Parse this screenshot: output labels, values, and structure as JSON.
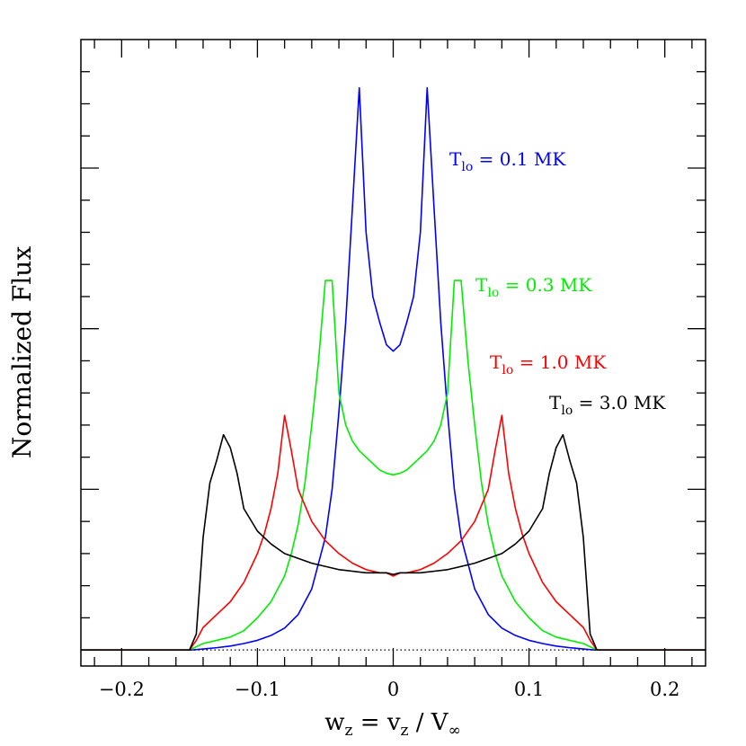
{
  "chart_data": {
    "type": "line",
    "xlabel": {
      "main": "w",
      "sub": "z",
      "mid": " = v",
      "sub2": "z",
      "tail": " / V",
      "sub3": "∞"
    },
    "ylabel": "Normalized Flux",
    "xlim": [
      -0.23,
      0.23
    ],
    "ylim": [
      -0.05,
      1.9
    ],
    "x_ticks": [
      {
        "value": -0.2,
        "label": "−0.2"
      },
      {
        "value": -0.1,
        "label": "−0.1"
      },
      {
        "value": 0,
        "label": "0"
      },
      {
        "value": 0.1,
        "label": "0.1"
      },
      {
        "value": 0.2,
        "label": "0.2"
      }
    ],
    "y_major_ticks": [
      0,
      0.5,
      1.0,
      1.5
    ],
    "grid": false,
    "baseline": {
      "y": 0,
      "style": "dotted"
    },
    "series": [
      {
        "name": "T_lo = 0.1 MK",
        "label_main": "T",
        "label_sub": "lo",
        "label_value": " = 0.1 MK",
        "color": "#0000ff",
        "x": [
          -0.23,
          -0.148,
          -0.14,
          -0.13,
          -0.12,
          -0.11,
          -0.1,
          -0.09,
          -0.08,
          -0.07,
          -0.06,
          -0.05,
          -0.045,
          -0.04,
          -0.035,
          -0.03,
          -0.025,
          -0.02,
          -0.015,
          -0.01,
          -0.005,
          0,
          0.005,
          0.01,
          0.015,
          0.02,
          0.025,
          0.03,
          0.035,
          0.04,
          0.045,
          0.05,
          0.06,
          0.07,
          0.08,
          0.09,
          0.1,
          0.11,
          0.12,
          0.13,
          0.14,
          0.148,
          0.23
        ],
        "y": [
          0,
          0,
          0.003,
          0.007,
          0.012,
          0.02,
          0.03,
          0.045,
          0.068,
          0.11,
          0.19,
          0.35,
          0.5,
          0.74,
          1.02,
          1.38,
          1.75,
          1.3,
          1.1,
          1.02,
          0.95,
          0.93,
          0.95,
          1.02,
          1.1,
          1.3,
          1.75,
          1.38,
          1.02,
          0.74,
          0.5,
          0.35,
          0.19,
          0.11,
          0.068,
          0.045,
          0.03,
          0.02,
          0.012,
          0.007,
          0.003,
          0,
          0
        ]
      },
      {
        "name": "T_lo = 0.3 MK",
        "label_main": "T",
        "label_sub": "lo",
        "label_value": " = 0.3 MK",
        "color": "#00ee00",
        "x": [
          -0.23,
          -0.15,
          -0.145,
          -0.14,
          -0.13,
          -0.12,
          -0.11,
          -0.1,
          -0.09,
          -0.08,
          -0.075,
          -0.07,
          -0.065,
          -0.06,
          -0.055,
          -0.05,
          -0.045,
          -0.04,
          -0.035,
          -0.03,
          -0.025,
          -0.02,
          -0.015,
          -0.01,
          -0.005,
          0,
          0.005,
          0.01,
          0.015,
          0.02,
          0.025,
          0.03,
          0.035,
          0.04,
          0.045,
          0.05,
          0.055,
          0.06,
          0.065,
          0.07,
          0.075,
          0.08,
          0.09,
          0.1,
          0.11,
          0.12,
          0.13,
          0.14,
          0.145,
          0.15,
          0.23
        ],
        "y": [
          0,
          0,
          0.01,
          0.02,
          0.03,
          0.04,
          0.06,
          0.1,
          0.15,
          0.23,
          0.3,
          0.39,
          0.52,
          0.7,
          0.9,
          1.15,
          1.15,
          0.8,
          0.7,
          0.65,
          0.62,
          0.6,
          0.58,
          0.56,
          0.55,
          0.545,
          0.55,
          0.56,
          0.58,
          0.6,
          0.62,
          0.65,
          0.7,
          0.8,
          1.15,
          1.15,
          0.9,
          0.7,
          0.52,
          0.39,
          0.3,
          0.23,
          0.15,
          0.1,
          0.06,
          0.04,
          0.03,
          0.02,
          0.01,
          0,
          0
        ]
      },
      {
        "name": "T_lo = 1.0 MK",
        "label_main": "T",
        "label_sub": "lo",
        "label_value": " = 1.0 MK",
        "color": "#ff0000",
        "x": [
          -0.23,
          -0.15,
          -0.145,
          -0.14,
          -0.13,
          -0.12,
          -0.11,
          -0.1,
          -0.095,
          -0.09,
          -0.085,
          -0.08,
          -0.075,
          -0.07,
          -0.06,
          -0.05,
          -0.04,
          -0.03,
          -0.02,
          -0.01,
          -0.005,
          0,
          0.005,
          0.01,
          0.02,
          0.03,
          0.04,
          0.05,
          0.06,
          0.07,
          0.075,
          0.08,
          0.085,
          0.09,
          0.095,
          0.1,
          0.11,
          0.12,
          0.13,
          0.14,
          0.145,
          0.15,
          0.23
        ],
        "y": [
          0,
          0,
          0.03,
          0.07,
          0.11,
          0.15,
          0.21,
          0.3,
          0.36,
          0.44,
          0.55,
          0.73,
          0.62,
          0.5,
          0.4,
          0.34,
          0.3,
          0.27,
          0.25,
          0.24,
          0.24,
          0.23,
          0.24,
          0.24,
          0.25,
          0.27,
          0.3,
          0.34,
          0.4,
          0.5,
          0.62,
          0.73,
          0.55,
          0.44,
          0.36,
          0.3,
          0.21,
          0.15,
          0.11,
          0.07,
          0.03,
          0,
          0
        ]
      },
      {
        "name": "T_lo = 3.0 MK",
        "label_main": "T",
        "label_sub": "lo",
        "label_value": " = 3.0 MK",
        "color": "#000000",
        "x": [
          -0.23,
          -0.15,
          -0.145,
          -0.14,
          -0.135,
          -0.13,
          -0.125,
          -0.12,
          -0.115,
          -0.11,
          -0.1,
          -0.09,
          -0.08,
          -0.06,
          -0.04,
          -0.02,
          -0.005,
          0,
          0.005,
          0.02,
          0.04,
          0.06,
          0.08,
          0.09,
          0.1,
          0.11,
          0.115,
          0.12,
          0.125,
          0.13,
          0.135,
          0.14,
          0.145,
          0.15,
          0.23
        ],
        "y": [
          0,
          0,
          0.05,
          0.35,
          0.52,
          0.59,
          0.67,
          0.63,
          0.55,
          0.44,
          0.37,
          0.33,
          0.3,
          0.27,
          0.25,
          0.24,
          0.24,
          0.235,
          0.24,
          0.24,
          0.25,
          0.27,
          0.3,
          0.33,
          0.37,
          0.44,
          0.55,
          0.63,
          0.67,
          0.59,
          0.52,
          0.35,
          0.05,
          0,
          0
        ]
      }
    ]
  }
}
